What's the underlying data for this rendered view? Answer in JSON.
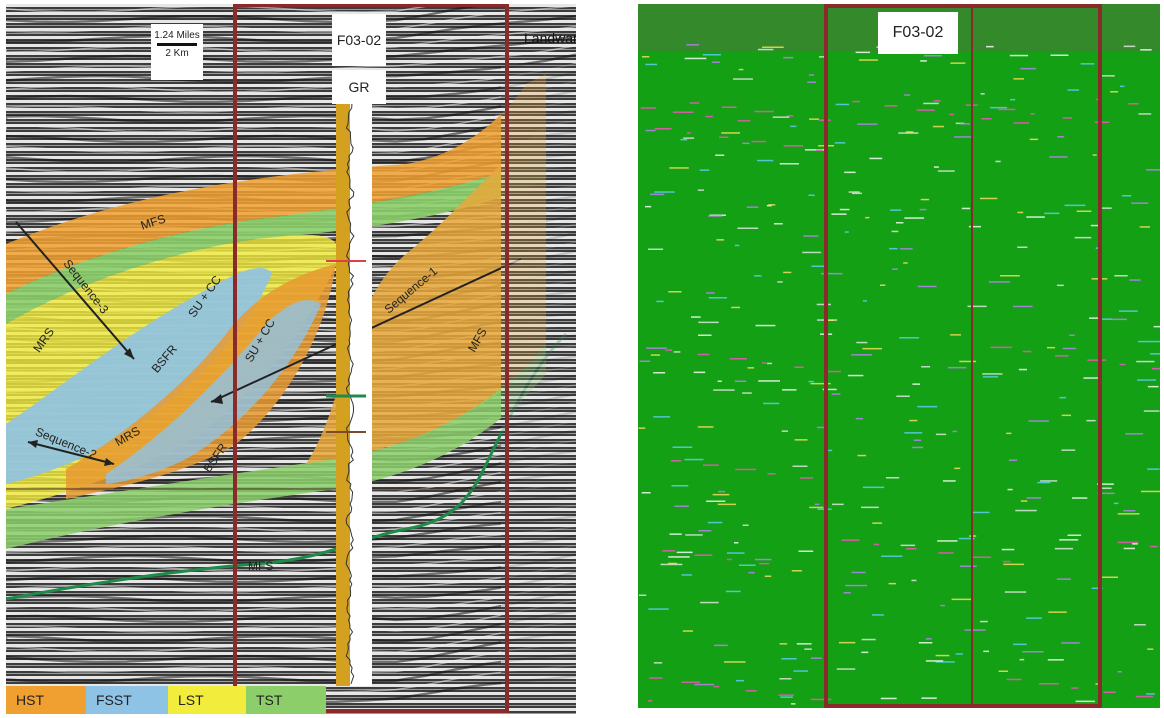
{
  "left": {
    "scale": {
      "miles": "1.24 Miles",
      "km": "2 Km"
    },
    "well": "F03-02",
    "log": "GR",
    "landward": "Landward",
    "labels": {
      "mfs1": "MFS",
      "seq3": "Sequence-3",
      "mrs1": "MRS",
      "bsfr1": "BSFR",
      "succ1": "SU + CC",
      "succ2": "SU + CC",
      "seq2": "Sequence-2",
      "mrs2": "MRS",
      "bsfr2": "BSFR",
      "seq1": "Sequence-1",
      "mfs2": "MFS",
      "mfs3": "MFS"
    },
    "legend": [
      {
        "label": "HST",
        "color": "#f0a030"
      },
      {
        "label": "FSST",
        "color": "#8fc3e6"
      },
      {
        "label": "LST",
        "color": "#f2ec3c"
      },
      {
        "label": "TST",
        "color": "#8ccf6a"
      }
    ]
  },
  "right": {
    "well": "F03-02"
  }
}
